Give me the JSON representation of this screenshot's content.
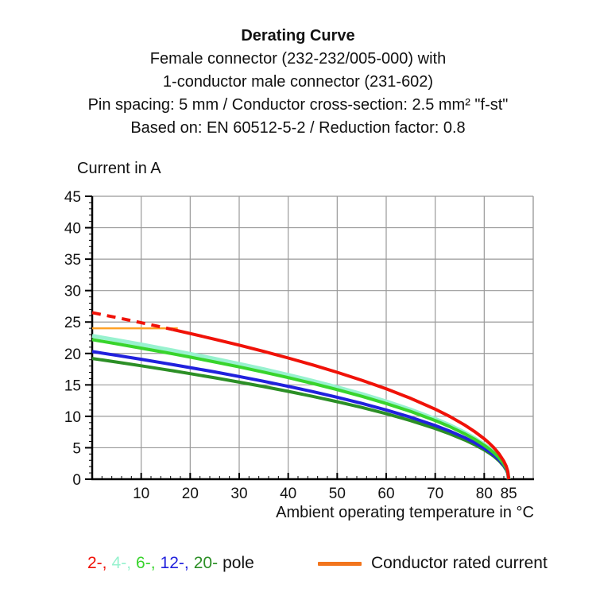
{
  "title": {
    "main": "Derating Curve",
    "sub1": "Female connector (232-232/005-000) with",
    "sub2": "1-conductor male connector (231-602)",
    "sub3": "Pin spacing: 5 mm / Conductor cross-section: 2.5 mm² \"f-st\"",
    "sub4": "Based on: EN 60512-5-2 / Reduction factor: 0.8"
  },
  "y_axis_title": "Current in A",
  "x_axis_title": "Ambient operating temperature in °C",
  "chart_data": {
    "type": "line",
    "xlabel": "Ambient operating temperature in °C",
    "ylabel": "Current in A",
    "xlim": [
      0,
      90
    ],
    "ylim": [
      0,
      45
    ],
    "x_tick_labels": [
      10,
      20,
      30,
      40,
      50,
      60,
      70,
      80,
      85
    ],
    "x_gridlines": [
      10,
      20,
      30,
      40,
      50,
      60,
      70,
      80,
      90
    ],
    "y_ticks": [
      0,
      5,
      10,
      15,
      20,
      25,
      30,
      35,
      40,
      45
    ],
    "x_minor_step": 2,
    "y_minor_step": 1,
    "grid": true,
    "grid_color": "#999999",
    "axis_color": "#000000",
    "text_color": "#111111",
    "x": [
      0,
      5,
      10,
      15,
      16.5,
      20,
      25,
      30,
      35,
      40,
      45,
      50,
      55,
      60,
      65,
      70,
      73,
      76,
      78,
      80,
      81,
      82,
      83,
      84,
      84.5,
      84.8,
      85
    ],
    "series": [
      {
        "name": "2-pole",
        "color": "#f01208",
        "width": 4,
        "dash_until": 16.5,
        "values": [
          26.5,
          25.71,
          24.89,
          24.05,
          23.79,
          23.17,
          22.26,
          21.32,
          20.32,
          19.28,
          18.18,
          17.0,
          15.74,
          14.37,
          12.85,
          11.13,
          9.96,
          8.62,
          7.6,
          6.43,
          5.75,
          4.98,
          4.06,
          2.87,
          2.03,
          1.29,
          0
        ]
      },
      {
        "name": "4-pole",
        "color": "#98f2cf",
        "width": 5,
        "values": [
          22.8,
          22.12,
          21.42,
          20.69,
          20.47,
          19.94,
          19.16,
          18.34,
          17.49,
          16.59,
          15.64,
          14.63,
          13.55,
          12.37,
          11.06,
          9.58,
          8.57,
          7.42,
          6.54,
          5.53,
          4.95,
          4.28,
          3.5,
          2.47,
          1.75,
          1.11,
          0
        ]
      },
      {
        "name": "6-pole",
        "color": "#38d42c",
        "width": 4,
        "values": [
          22.2,
          21.54,
          20.85,
          20.15,
          19.93,
          19.41,
          18.65,
          17.86,
          17.03,
          16.15,
          15.23,
          14.25,
          13.19,
          12.04,
          10.77,
          9.33,
          8.34,
          7.22,
          6.37,
          5.38,
          4.82,
          4.17,
          3.41,
          2.41,
          1.7,
          1.08,
          0
        ]
      },
      {
        "name": "12-pole",
        "color": "#2121dd",
        "width": 4,
        "values": [
          20.3,
          19.69,
          19.07,
          18.42,
          18.22,
          17.75,
          17.06,
          16.33,
          15.57,
          14.77,
          13.93,
          13.03,
          12.06,
          11.01,
          9.85,
          8.53,
          7.63,
          6.61,
          5.83,
          4.92,
          4.4,
          3.81,
          3.11,
          2.2,
          1.56,
          0.98,
          0
        ]
      },
      {
        "name": "20-pole",
        "color": "#2c8f26",
        "width": 4,
        "values": [
          19.2,
          18.63,
          18.04,
          17.42,
          17.24,
          16.79,
          16.13,
          15.44,
          14.73,
          13.97,
          13.17,
          12.32,
          11.41,
          10.41,
          9.31,
          8.07,
          7.21,
          6.25,
          5.51,
          4.66,
          4.17,
          3.61,
          2.95,
          2.08,
          1.47,
          0.93,
          0
        ]
      }
    ],
    "draw_order": [
      "20-pole",
      "4-pole",
      "12-pole",
      "6-pole",
      "2-pole"
    ],
    "rated_current": {
      "value": 24,
      "x_start": 0,
      "x_end": 16.5,
      "color": "#ffa126",
      "width": 2.5
    },
    "legend_position": "bottom"
  },
  "legend": {
    "pole_items": [
      {
        "text": "2-,",
        "color": "#f01208"
      },
      {
        "text": "4-,",
        "color": "#98f2cf"
      },
      {
        "text": "6-,",
        "color": "#38d42c"
      },
      {
        "text": "12-,",
        "color": "#2121dd"
      },
      {
        "text": "20-",
        "color": "#2c8f26"
      }
    ],
    "suffix": "pole",
    "rated_label": "Conductor rated current",
    "rated_swatch_color": "#f2751d"
  }
}
